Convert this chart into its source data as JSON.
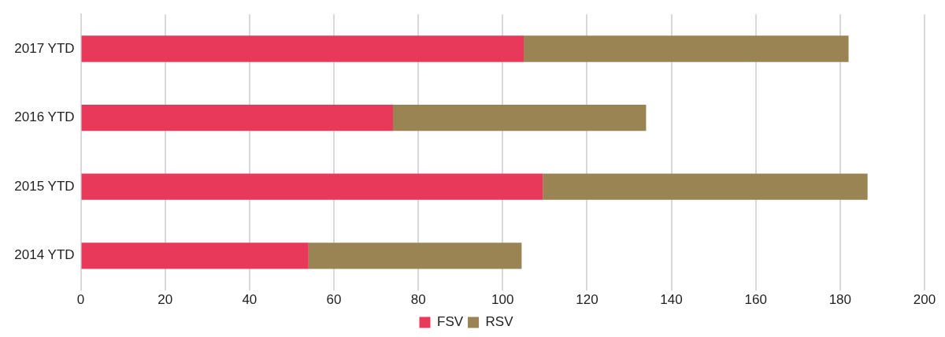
{
  "chart_data": {
    "type": "bar",
    "orientation": "horizontal",
    "stacked": true,
    "categories": [
      "2017 YTD",
      "2016 YTD",
      "2015 YTD",
      "2014 YTD"
    ],
    "series": [
      {
        "name": "FSV",
        "color": "#e8395a",
        "values": [
          105,
          74,
          109.5,
          54
        ]
      },
      {
        "name": "RSV",
        "color": "#9a8454",
        "values": [
          77,
          60,
          77,
          50.5
        ]
      }
    ],
    "xlim": [
      0,
      200
    ],
    "xticks": [
      0,
      20,
      40,
      60,
      80,
      100,
      120,
      140,
      160,
      180,
      200
    ],
    "grid": "x",
    "legend": "bottom"
  }
}
